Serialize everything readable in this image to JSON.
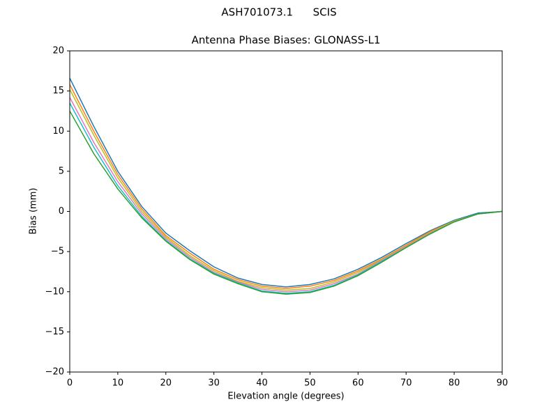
{
  "chart_data": {
    "type": "line",
    "suptitle": "ASH701073.1      SCIS",
    "title": "Antenna Phase Biases: GLONASS-L1",
    "x_label": "Elevation angle (degrees)",
    "y_label": "Bias (mm)",
    "x": [
      0,
      5,
      10,
      15,
      20,
      25,
      30,
      35,
      40,
      45,
      50,
      55,
      60,
      65,
      70,
      75,
      80,
      85,
      90
    ],
    "series": [
      {
        "color": "#1f77b4",
        "values": [
          16.6,
          10.6,
          5.0,
          0.6,
          -2.7,
          -4.9,
          -6.9,
          -8.3,
          -9.1,
          -9.4,
          -9.1,
          -8.4,
          -7.2,
          -5.7,
          -4.0,
          -2.4,
          -1.1,
          -0.2,
          0
        ]
      },
      {
        "color": "#ff7f0e",
        "values": [
          15.8,
          10.0,
          4.6,
          0.3,
          -3.0,
          -5.2,
          -7.2,
          -8.5,
          -9.3,
          -9.6,
          -9.3,
          -8.6,
          -7.4,
          -5.9,
          -4.2,
          -2.5,
          -1.2,
          -0.3,
          0
        ]
      },
      {
        "color": "#bcbd22",
        "values": [
          15.2,
          9.5,
          4.2,
          0.0,
          -3.2,
          -5.5,
          -7.4,
          -8.7,
          -9.5,
          -9.8,
          -9.6,
          -8.8,
          -7.6,
          -6.0,
          -4.3,
          -2.6,
          -1.2,
          -0.3,
          0
        ]
      },
      {
        "color": "#e377c2",
        "values": [
          14.2,
          8.6,
          3.7,
          -0.3,
          -3.4,
          -5.7,
          -7.6,
          -8.8,
          -9.7,
          -10.0,
          -9.8,
          -9.0,
          -7.8,
          -6.1,
          -4.4,
          -2.7,
          -1.3,
          -0.3,
          0
        ]
      },
      {
        "color": "#17becf",
        "values": [
          13.5,
          8.0,
          3.2,
          -0.6,
          -3.6,
          -5.9,
          -7.7,
          -8.9,
          -9.9,
          -10.2,
          -10.0,
          -9.2,
          -7.9,
          -6.2,
          -4.5,
          -2.8,
          -1.3,
          -0.3,
          0
        ]
      },
      {
        "color": "#2ca02c",
        "values": [
          12.5,
          7.2,
          2.8,
          -0.8,
          -3.7,
          -6.0,
          -7.8,
          -9.0,
          -10.0,
          -10.3,
          -10.1,
          -9.3,
          -8.0,
          -6.3,
          -4.5,
          -2.8,
          -1.3,
          -0.3,
          0
        ]
      }
    ],
    "xlim": [
      0,
      90
    ],
    "xticks": [
      0,
      10,
      20,
      30,
      40,
      50,
      60,
      70,
      80,
      90
    ],
    "ylim": [
      -20,
      20
    ],
    "yticks": [
      {
        "value": -20,
        "label": "−20"
      },
      {
        "value": -15,
        "label": "−15"
      },
      {
        "value": -10,
        "label": "−10"
      },
      {
        "value": -5,
        "label": "−5"
      },
      0,
      5,
      10,
      15,
      20
    ]
  }
}
